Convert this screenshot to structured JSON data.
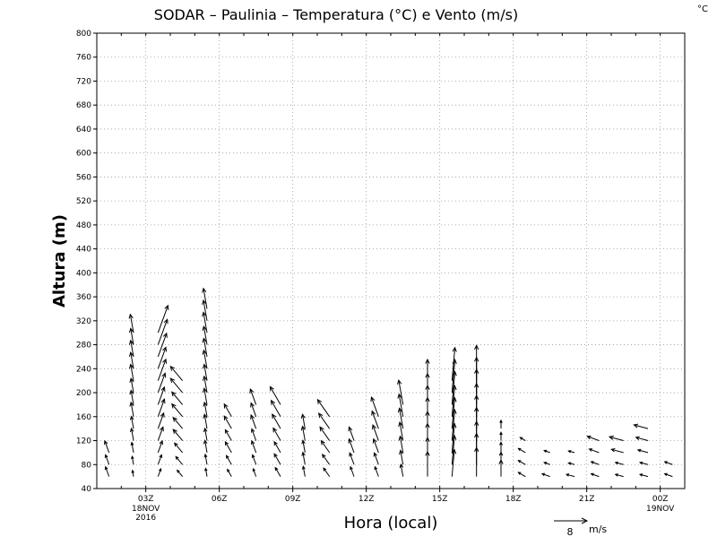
{
  "chart_data": {
    "type": "vector",
    "title": "SODAR – Paulinia – Temperatura (°C) e Vento (m/s)",
    "corner_unit": "°C",
    "xlabel": "Hora (local)",
    "ylabel": "Altura (m)",
    "xlim": [
      0,
      24
    ],
    "ylim": [
      40,
      800
    ],
    "grid": true,
    "y_ticks": [
      40,
      80,
      120,
      160,
      200,
      240,
      280,
      320,
      360,
      400,
      440,
      480,
      520,
      560,
      600,
      640,
      680,
      720,
      760,
      800
    ],
    "x_ticks": [
      {
        "x": 2,
        "label": "03Z",
        "sub1": "18NOV",
        "sub2": "2016"
      },
      {
        "x": 5,
        "label": "06Z",
        "sub1": "",
        "sub2": ""
      },
      {
        "x": 8,
        "label": "09Z",
        "sub1": "",
        "sub2": ""
      },
      {
        "x": 11,
        "label": "12Z",
        "sub1": "",
        "sub2": ""
      },
      {
        "x": 14,
        "label": "15Z",
        "sub1": "",
        "sub2": ""
      },
      {
        "x": 17,
        "label": "18Z",
        "sub1": "",
        "sub2": ""
      },
      {
        "x": 20,
        "label": "21Z",
        "sub1": "",
        "sub2": ""
      },
      {
        "x": 23,
        "label": "00Z",
        "sub1": "19NOV",
        "sub2": ""
      }
    ],
    "reference_vector": {
      "speed": 8,
      "unit": "m/s",
      "label": "8"
    },
    "series": [
      {
        "x": 0,
        "dir": 340,
        "speeds": [
          2.5,
          2.5,
          3
        ]
      },
      {
        "x": 1,
        "dir": 350,
        "speeds": [
          1.5,
          2,
          2.5,
          3,
          3,
          3.5,
          3.5,
          3.5,
          4,
          4,
          4,
          4,
          4.5
        ]
      },
      {
        "x": 2,
        "dir": 20,
        "speeds": [
          2,
          2.5,
          3,
          3.5,
          4,
          4.5,
          4.5,
          5,
          5.5,
          5.5,
          6,
          6.5,
          7
        ]
      },
      {
        "x": 3,
        "dir": 320,
        "speeds": [
          2,
          2.5,
          3,
          3.5,
          3.5,
          4,
          4,
          4.5,
          4.5
        ]
      },
      {
        "x": 4,
        "dir": 350,
        "speeds": [
          2,
          2.5,
          3,
          3,
          3.5,
          3.5,
          4,
          4,
          4,
          4.5,
          4.5,
          4.5,
          5,
          5,
          5
        ]
      },
      {
        "x": 5,
        "dir": 330,
        "speeds": [
          2,
          2.5,
          3,
          3,
          3.5,
          3.5
        ]
      },
      {
        "x": 6,
        "dir": 340,
        "speeds": [
          2,
          2.5,
          3,
          3,
          3.5,
          3.5,
          4
        ]
      },
      {
        "x": 7,
        "dir": 330,
        "speeds": [
          2.5,
          3,
          3,
          3.5,
          4,
          4.5,
          5
        ]
      },
      {
        "x": 8,
        "dir": 350,
        "speeds": [
          2.5,
          3,
          3,
          3.5,
          3.5
        ]
      },
      {
        "x": 9,
        "dir": 325,
        "speeds": [
          2.5,
          3,
          3.5,
          4,
          4.5,
          5
        ]
      },
      {
        "x": 10,
        "dir": 340,
        "speeds": [
          2.5,
          3,
          3.5,
          3.5
        ]
      },
      {
        "x": 11,
        "dir": 340,
        "speeds": [
          2.5,
          3,
          3.5,
          4,
          4.5,
          5
        ]
      },
      {
        "x": 12,
        "dir": 350,
        "speeds": [
          3,
          3.5,
          4,
          4.5,
          5,
          5.5,
          6
        ]
      },
      {
        "x": 13,
        "dir": 0,
        "speeds": [
          6,
          6.5,
          7,
          7,
          7.5,
          7.5,
          7.5,
          8
        ]
      },
      {
        "x": 14,
        "dir": 5,
        "speeds": [
          6.5,
          7,
          7,
          7.5,
          7.5,
          7.5,
          8,
          8,
          8
        ]
      },
      {
        "x": 15,
        "dir": 0,
        "speeds": [
          7,
          7.5,
          7.5,
          8,
          8,
          8,
          8.5,
          8.5,
          8.5
        ]
      },
      {
        "x": 16,
        "dir": 0,
        "speeds": [
          4,
          3,
          2.5,
          2,
          2
        ]
      },
      {
        "x": 17,
        "dir": 300,
        "speeds": [
          2,
          2,
          2,
          1.5
        ]
      },
      {
        "x": 18,
        "dir": 290,
        "speeds": [
          2,
          1.5,
          1.5
        ]
      },
      {
        "x": 19,
        "dir": 285,
        "speeds": [
          2,
          1.5,
          1.5
        ]
      },
      {
        "x": 20,
        "dir": 290,
        "speeds": [
          2,
          2,
          2.5,
          3
        ]
      },
      {
        "x": 21,
        "dir": 285,
        "speeds": [
          2,
          2,
          3,
          3.5
        ]
      },
      {
        "x": 22,
        "dir": 285,
        "speeds": [
          2,
          2,
          2.5,
          3,
          3.5
        ]
      },
      {
        "x": 23,
        "dir": 290,
        "speeds": [
          2,
          2
        ]
      }
    ]
  }
}
